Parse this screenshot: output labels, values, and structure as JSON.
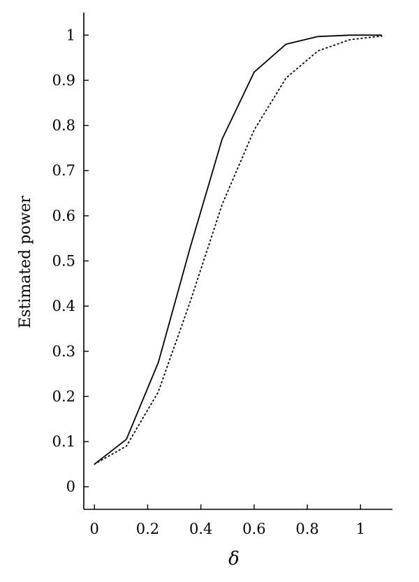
{
  "chart_data": {
    "type": "line",
    "xlabel": "δ",
    "ylabel": "Estimated power",
    "xlim": [
      -0.04,
      1.12
    ],
    "ylim": [
      -0.05,
      1.05
    ],
    "xticks": [
      "0",
      "0.2",
      "0.4",
      "0.6",
      "0.8",
      "1"
    ],
    "yticks": [
      "0",
      "0.1",
      "0.2",
      "0.3",
      "0.4",
      "0.5",
      "0.6",
      "0.7",
      "0.8",
      "0.9",
      "1"
    ],
    "grid": false,
    "legend": "none",
    "series": [
      {
        "style": "solid",
        "color": "#000000",
        "x": [
          0.0,
          0.12,
          0.24,
          0.36,
          0.48,
          0.6,
          0.72,
          0.84,
          0.96,
          1.08
        ],
        "y": [
          0.05,
          0.105,
          0.275,
          0.53,
          0.77,
          0.918,
          0.98,
          0.997,
          1.0,
          1.0
        ]
      },
      {
        "style": "dotted",
        "color": "#000000",
        "x": [
          0.0,
          0.12,
          0.24,
          0.36,
          0.48,
          0.6,
          0.72,
          0.84,
          0.96,
          1.08
        ],
        "y": [
          0.05,
          0.09,
          0.21,
          0.41,
          0.625,
          0.79,
          0.905,
          0.965,
          0.99,
          0.998
        ]
      }
    ]
  }
}
